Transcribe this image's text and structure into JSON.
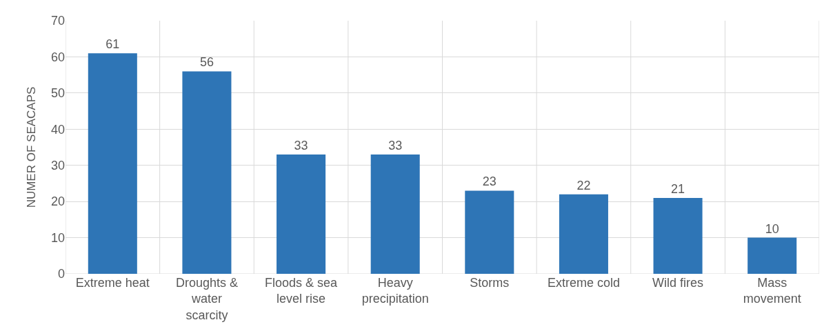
{
  "chart_data": {
    "type": "bar",
    "ylabel": "NUMER OF SEACAPS",
    "categories": [
      "Extreme heat",
      "Droughts & water scarcity",
      "Floods & sea level rise",
      "Heavy precipitation",
      "Storms",
      "Extreme cold",
      "Wild fires",
      "Mass movement"
    ],
    "values": [
      61,
      56,
      33,
      33,
      23,
      22,
      21,
      10
    ],
    "color": "#2e75b6",
    "ylim": [
      0,
      70
    ],
    "yticks": [
      0,
      10,
      20,
      30,
      40,
      50,
      60,
      70
    ],
    "grid": true,
    "data_labels": true
  }
}
